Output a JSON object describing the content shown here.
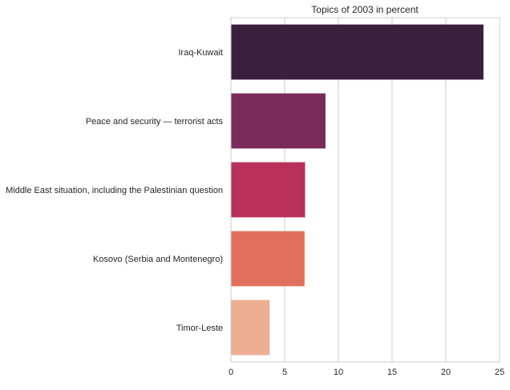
{
  "chart_data": {
    "type": "bar",
    "orientation": "horizontal",
    "title": "Topics of 2003 in percent",
    "xlabel": "",
    "ylabel": "",
    "categories": [
      "Iraq-Kuwait",
      "Peace and security — terrorist acts",
      "Middle East situation, including the Palestinian question",
      "Kosovo (Serbia and Montenegro)",
      "Timor-Leste"
    ],
    "values": [
      23.5,
      8.8,
      6.9,
      6.85,
      3.6
    ],
    "colors": [
      "#3a1f3e",
      "#7a2a5b",
      "#b9315a",
      "#e0705c",
      "#edae93"
    ],
    "xlim": [
      0,
      25
    ],
    "xticks": [
      0,
      5,
      10,
      15,
      20,
      25
    ],
    "grid": "vertical",
    "legend": "none"
  }
}
